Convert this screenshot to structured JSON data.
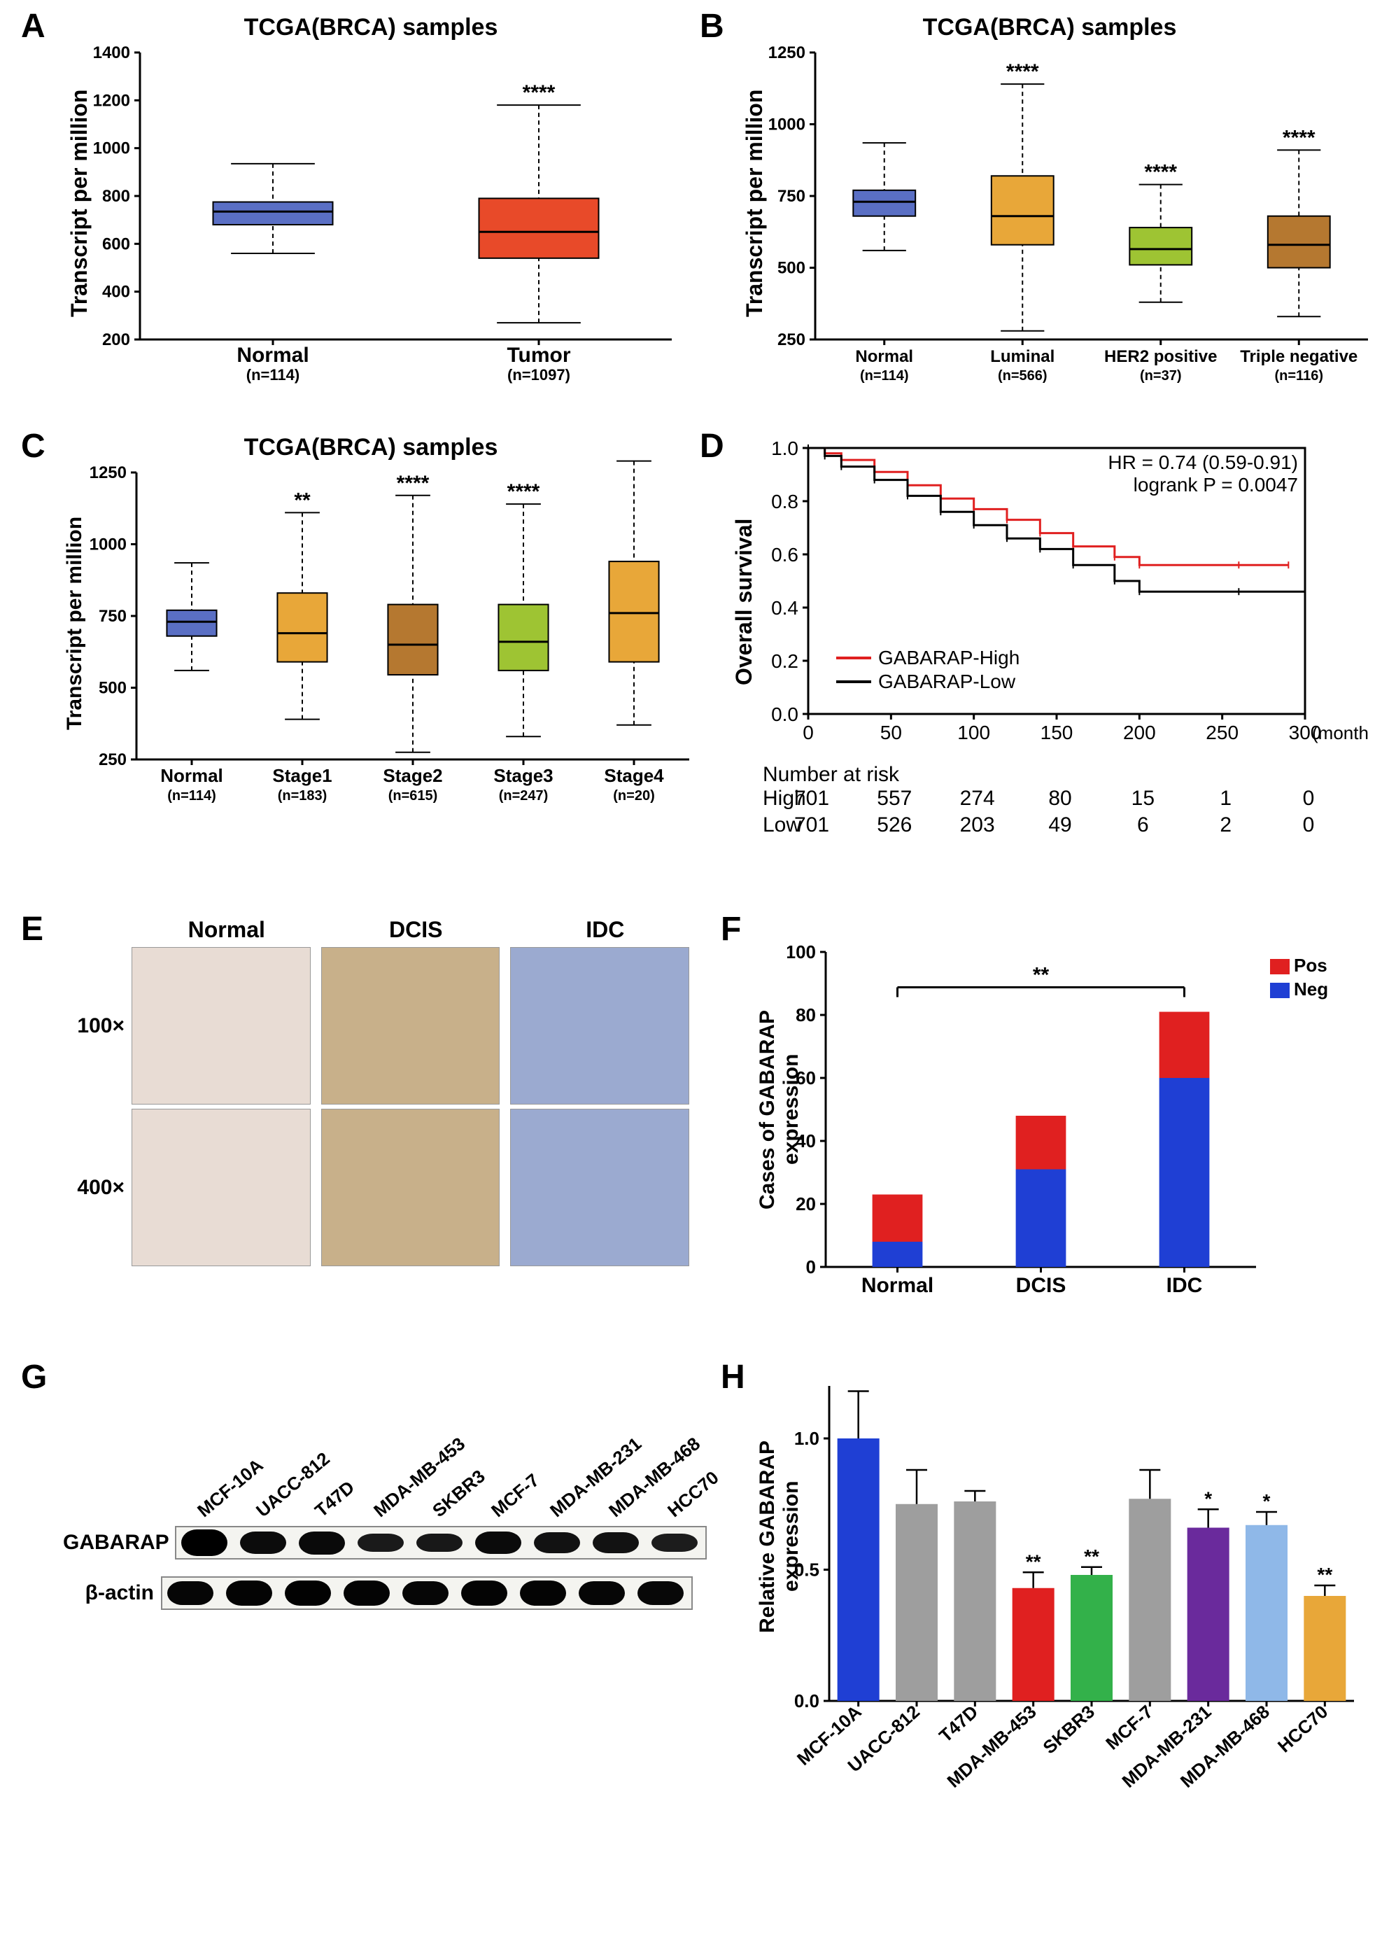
{
  "panelA": {
    "label": "A",
    "title": "TCGA(BRCA) samples",
    "ylabel": "Transcript per million",
    "ylim": [
      200,
      1400
    ],
    "ytick_step": 200,
    "categories": [
      "Normal",
      "Tumor"
    ],
    "n_labels": [
      "(n=114)",
      "(n=1097)"
    ],
    "colors": [
      "#5a6fc4",
      "#e84a29"
    ],
    "box_q1": [
      680,
      540
    ],
    "box_median": [
      735,
      650
    ],
    "box_q3": [
      775,
      790
    ],
    "whisker_lo": [
      560,
      270
    ],
    "whisker_hi": [
      935,
      1180
    ],
    "significance": [
      "",
      "****"
    ],
    "title_fontsize": 34,
    "label_fontsize": 32,
    "tick_fontsize": 24
  },
  "panelB": {
    "label": "B",
    "title": "TCGA(BRCA) samples",
    "ylabel": "Transcript per million",
    "ylim": [
      250,
      1250
    ],
    "ytick_step": 250,
    "categories": [
      "Normal",
      "Luminal",
      "HER2 positive",
      "Triple negative"
    ],
    "n_labels": [
      "(n=114)",
      "(n=566)",
      "(n=37)",
      "(n=116)"
    ],
    "colors": [
      "#5a6fc4",
      "#e8a739",
      "#9ec433",
      "#b57830"
    ],
    "box_q1": [
      680,
      580,
      510,
      500
    ],
    "box_median": [
      730,
      680,
      565,
      580
    ],
    "box_q3": [
      770,
      820,
      640,
      680
    ],
    "whisker_lo": [
      560,
      280,
      380,
      330
    ],
    "whisker_hi": [
      935,
      1140,
      790,
      910
    ],
    "significance": [
      "",
      "****",
      "****",
      "****"
    ],
    "title_fontsize": 34,
    "label_fontsize": 32,
    "tick_fontsize": 24
  },
  "panelC": {
    "label": "C",
    "title": "TCGA(BRCA) samples",
    "ylabel": "Transcript per million",
    "ylim": [
      250,
      1250
    ],
    "ytick_step": 250,
    "categories": [
      "Normal",
      "Stage1",
      "Stage2",
      "Stage3",
      "Stage4"
    ],
    "n_labels": [
      "(n=114)",
      "(n=183)",
      "(n=615)",
      "(n=247)",
      "(n=20)"
    ],
    "colors": [
      "#5a6fc4",
      "#e8a739",
      "#b57830",
      "#9ec433",
      "#e8a739"
    ],
    "box_q1": [
      680,
      590,
      545,
      560,
      590
    ],
    "box_median": [
      730,
      690,
      650,
      660,
      760
    ],
    "box_q3": [
      770,
      830,
      790,
      790,
      940
    ],
    "whisker_lo": [
      560,
      390,
      275,
      330,
      370
    ],
    "whisker_hi": [
      935,
      1110,
      1170,
      1140,
      1290
    ],
    "significance": [
      "",
      "**",
      "****",
      "****",
      ""
    ],
    "title_fontsize": 34,
    "label_fontsize": 30,
    "tick_fontsize": 24
  },
  "panelD": {
    "label": "D",
    "ylabel": "Overall survival",
    "xlabel": "(months)",
    "ylim": [
      0.0,
      1.0
    ],
    "ytick_step": 0.2,
    "xlim": [
      0,
      300
    ],
    "xtick_step": 50,
    "hr_text": "HR = 0.74 (0.59-0.91)",
    "logrank_text": "logrank P = 0.0047",
    "series": [
      {
        "name": "GABARAP-High",
        "color": "#e02020",
        "points": [
          [
            0,
            1.0
          ],
          [
            10,
            0.98
          ],
          [
            20,
            0.955
          ],
          [
            40,
            0.91
          ],
          [
            60,
            0.86
          ],
          [
            80,
            0.81
          ],
          [
            100,
            0.77
          ],
          [
            120,
            0.73
          ],
          [
            140,
            0.68
          ],
          [
            160,
            0.63
          ],
          [
            185,
            0.59
          ],
          [
            200,
            0.56
          ],
          [
            260,
            0.56
          ],
          [
            290,
            0.56
          ]
        ]
      },
      {
        "name": "GABARAP-Low",
        "color": "#000000",
        "points": [
          [
            0,
            1.0
          ],
          [
            10,
            0.97
          ],
          [
            20,
            0.93
          ],
          [
            40,
            0.88
          ],
          [
            60,
            0.82
          ],
          [
            80,
            0.76
          ],
          [
            100,
            0.71
          ],
          [
            120,
            0.66
          ],
          [
            140,
            0.62
          ],
          [
            160,
            0.56
          ],
          [
            185,
            0.5
          ],
          [
            200,
            0.46
          ],
          [
            260,
            0.46
          ],
          [
            300,
            0.46
          ]
        ]
      }
    ],
    "risk_title": "Number at risk",
    "risk_rows": [
      {
        "label": "High",
        "values": [
          701,
          557,
          274,
          80,
          15,
          1,
          0
        ]
      },
      {
        "label": "Low",
        "values": [
          701,
          526,
          203,
          49,
          6,
          2,
          0
        ]
      }
    ],
    "label_fontsize": 32
  },
  "panelE": {
    "label": "E",
    "col_headers": [
      "Normal",
      "DCIS",
      "IDC"
    ],
    "row_headers": [
      "100×",
      "400×"
    ]
  },
  "panelF": {
    "label": "F",
    "ylabel": "Cases of GABARAP expression",
    "ylim": [
      0,
      100
    ],
    "ytick_step": 20,
    "categories": [
      "Normal",
      "DCIS",
      "IDC"
    ],
    "legend": [
      {
        "name": "Pos",
        "color": "#e02020"
      },
      {
        "name": "Neg",
        "color": "#1f3fd4"
      }
    ],
    "bars": [
      {
        "neg": 8,
        "pos": 15
      },
      {
        "neg": 31,
        "pos": 17
      },
      {
        "neg": 60,
        "pos": 21
      }
    ],
    "significance_label": "**",
    "sig_between": [
      0,
      2
    ],
    "bar_width": 0.35,
    "label_fontsize": 30
  },
  "panelG": {
    "label": "G",
    "cell_lines": [
      "MCF-10A",
      "UACC-812",
      "T47D",
      "MDA-MB-453",
      "SKBR3",
      "MCF-7",
      "MDA-MB-231",
      "MDA-MB-468",
      "HCC70"
    ],
    "row_labels": [
      "GABARAP",
      "β-actin"
    ],
    "band_intensity": {
      "GABARAP": [
        1.0,
        0.7,
        0.75,
        0.35,
        0.4,
        0.72,
        0.55,
        0.55,
        0.3
      ],
      "β-actin": [
        0.85,
        0.9,
        0.95,
        0.9,
        0.85,
        0.9,
        0.9,
        0.85,
        0.8
      ]
    }
  },
  "panelH": {
    "label": "H",
    "ylabel": "Relative GABARAP expression",
    "ylim": [
      0.0,
      1.2
    ],
    "ytick_step": 0.5,
    "yticks": [
      0.0,
      0.5,
      1.0
    ],
    "categories": [
      "MCF-10A",
      "UACC-812",
      "T47D",
      "MDA-MB-453",
      "SKBR3",
      "MCF-7",
      "MDA-MB-231",
      "MDA-MB-468",
      "HCC70"
    ],
    "values": [
      1.0,
      0.75,
      0.76,
      0.43,
      0.48,
      0.77,
      0.66,
      0.67,
      0.4
    ],
    "errors": [
      0.18,
      0.13,
      0.04,
      0.06,
      0.03,
      0.11,
      0.07,
      0.05,
      0.04
    ],
    "colors": [
      "#1f3fd4",
      "#9e9e9e",
      "#9e9e9e",
      "#e02020",
      "#33b14a",
      "#9e9e9e",
      "#6a2a9c",
      "#8fb8e8",
      "#e8a739"
    ],
    "significance": [
      "",
      "",
      "",
      "**",
      "**",
      "",
      "*",
      "*",
      "**"
    ],
    "bar_width": 0.72,
    "label_fontsize": 30
  }
}
